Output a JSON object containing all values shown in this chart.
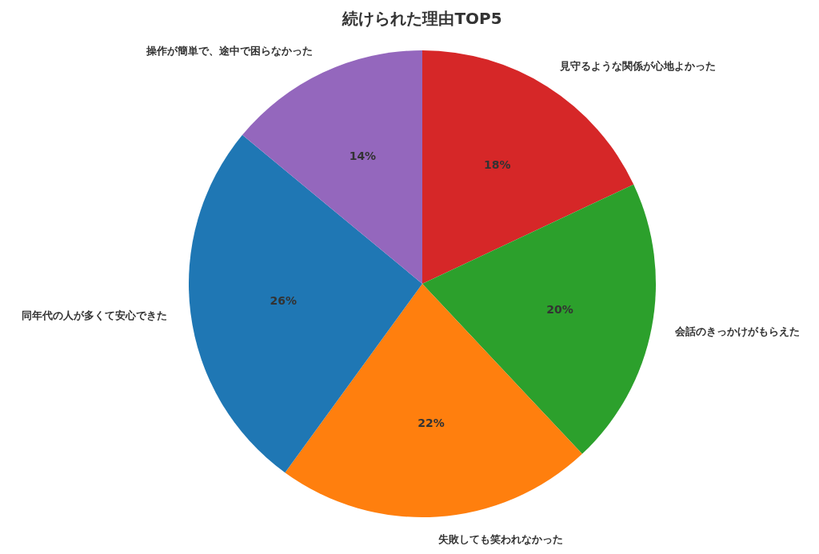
{
  "chart_data": {
    "type": "pie",
    "title": "続けられた理由TOP5",
    "categories": [
      "見守るような関係が心地よかった",
      "会話のきっかけがもらえた",
      "失敗しても笑われなかった",
      "同年代の人が多くて安心できた",
      "操作が簡単で、途中で困らなかった"
    ],
    "values": [
      18,
      20,
      22,
      26,
      14
    ],
    "colors": [
      "#d62728",
      "#2ca02c",
      "#ff7f0e",
      "#1f77b4",
      "#9467bd"
    ],
    "value_labels": [
      "18%",
      "20%",
      "22%",
      "26%",
      "14%"
    ]
  }
}
